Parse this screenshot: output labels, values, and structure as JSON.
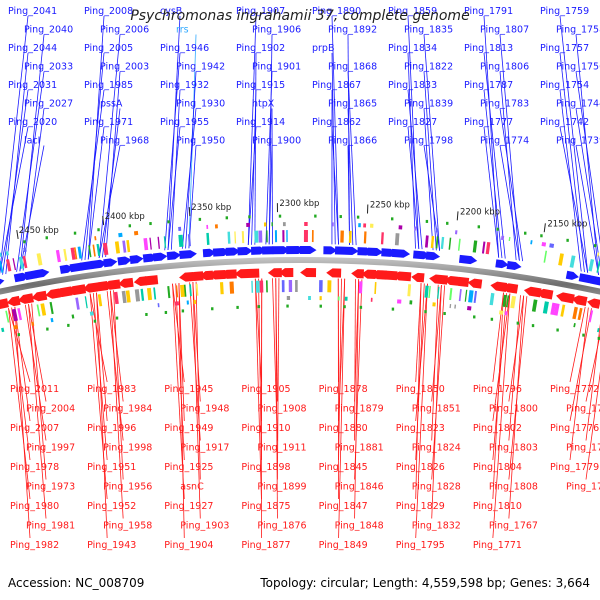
{
  "title": "Psychromonas ingrahamii 37, complete genome",
  "footer": {
    "accession": "Accession: NC_008709",
    "summary": "Topology: circular; Length: 4,559,598 bp; Genes: 3,664"
  },
  "colors": {
    "top": "#1a1aff",
    "bottom": "#ff1a1a",
    "backbone": "#7a7a7a",
    "rrna": "#33aaff"
  },
  "scale_ticks": [
    "2450 kbp",
    "2400 kbp",
    "2350 kbp",
    "2300 kbp",
    "2250 kbp",
    "2200 kbp",
    "2150 kbp"
  ],
  "top_labels": [
    "Ping_2041",
    "Ping_2040",
    "Ping_2044",
    "Ping_2033",
    "Ping_2031",
    "Ping_2027",
    "Ping_2020",
    "lacI",
    "Ping_2008",
    "Ping_2006",
    "Ping_2005",
    "Ping_2003",
    "Ping_1985",
    "pssA",
    "Ping_1971",
    "Ping_1968",
    "cysB",
    "rrs",
    "Ping_1946",
    "Ping_1942",
    "Ping_1932",
    "Ping_1930",
    "Ping_1955",
    "Ping_1950",
    "Ping_1907",
    "Ping_1906",
    "Ping_1902",
    "Ping_1901",
    "Ping_1915",
    "htpX",
    "Ping_1914",
    "Ping_1900",
    "Ping_1890",
    "Ping_1892",
    "prpB",
    "Ping_1868",
    "Ping_1867",
    "Ping_1865",
    "Ping_1862",
    "Ping_1866",
    "Ping_1859",
    "Ping_1835",
    "Ping_1834",
    "Ping_1822",
    "Ping_1833",
    "Ping_1839",
    "Ping_1827",
    "Ping_1798",
    "Ping_1791",
    "Ping_1807",
    "Ping_1813",
    "Ping_1806",
    "Ping_1787",
    "Ping_1783",
    "Ping_1777",
    "Ping_1774",
    "Ping_1759",
    "Ping_1758",
    "Ping_1757",
    "Ping_1756",
    "Ping_1754",
    "Ping_1744",
    "Ping_1742",
    "Ping_1739"
  ],
  "bottom_labels": [
    "Ping_2011",
    "Ping_2004",
    "Ping_2007",
    "Ping_1997",
    "Ping_1978",
    "Ping_1973",
    "Ping_1980",
    "Ping_1981",
    "Ping_1982",
    "Ping_1983",
    "Ping_1984",
    "Ping_1996",
    "Ping_1998",
    "Ping_1951",
    "Ping_1956",
    "Ping_1952",
    "Ping_1958",
    "Ping_1943",
    "Ping_1945",
    "Ping_1948",
    "Ping_1949",
    "Ping_1917",
    "Ping_1925",
    "asnC",
    "Ping_1927",
    "Ping_1903",
    "Ping_1904",
    "Ping_1905",
    "Ping_1908",
    "Ping_1910",
    "Ping_1911",
    "Ping_1898",
    "Ping_1899",
    "Ping_1875",
    "Ping_1876",
    "Ping_1877",
    "Ping_1878",
    "Ping_1879",
    "Ping_1880",
    "Ping_1881",
    "Ping_1845",
    "Ping_1846",
    "Ping_1847",
    "Ping_1848",
    "Ping_1849",
    "Ping_1850",
    "Ping_1851",
    "Ping_1823",
    "Ping_1824",
    "Ping_1826",
    "Ping_1828",
    "Ping_1829",
    "Ping_1832",
    "Ping_1795",
    "Ping_1796",
    "Ping_1800",
    "Ping_1802",
    "Ping_1803",
    "Ping_1804",
    "Ping_1808",
    "Ping_1810",
    "Ping_1767",
    "Ping_1771",
    "Ping_1772",
    "Ping_1773",
    "Ping_1776",
    "Ping_1778",
    "Ping_1779",
    "Ping_1782"
  ]
}
